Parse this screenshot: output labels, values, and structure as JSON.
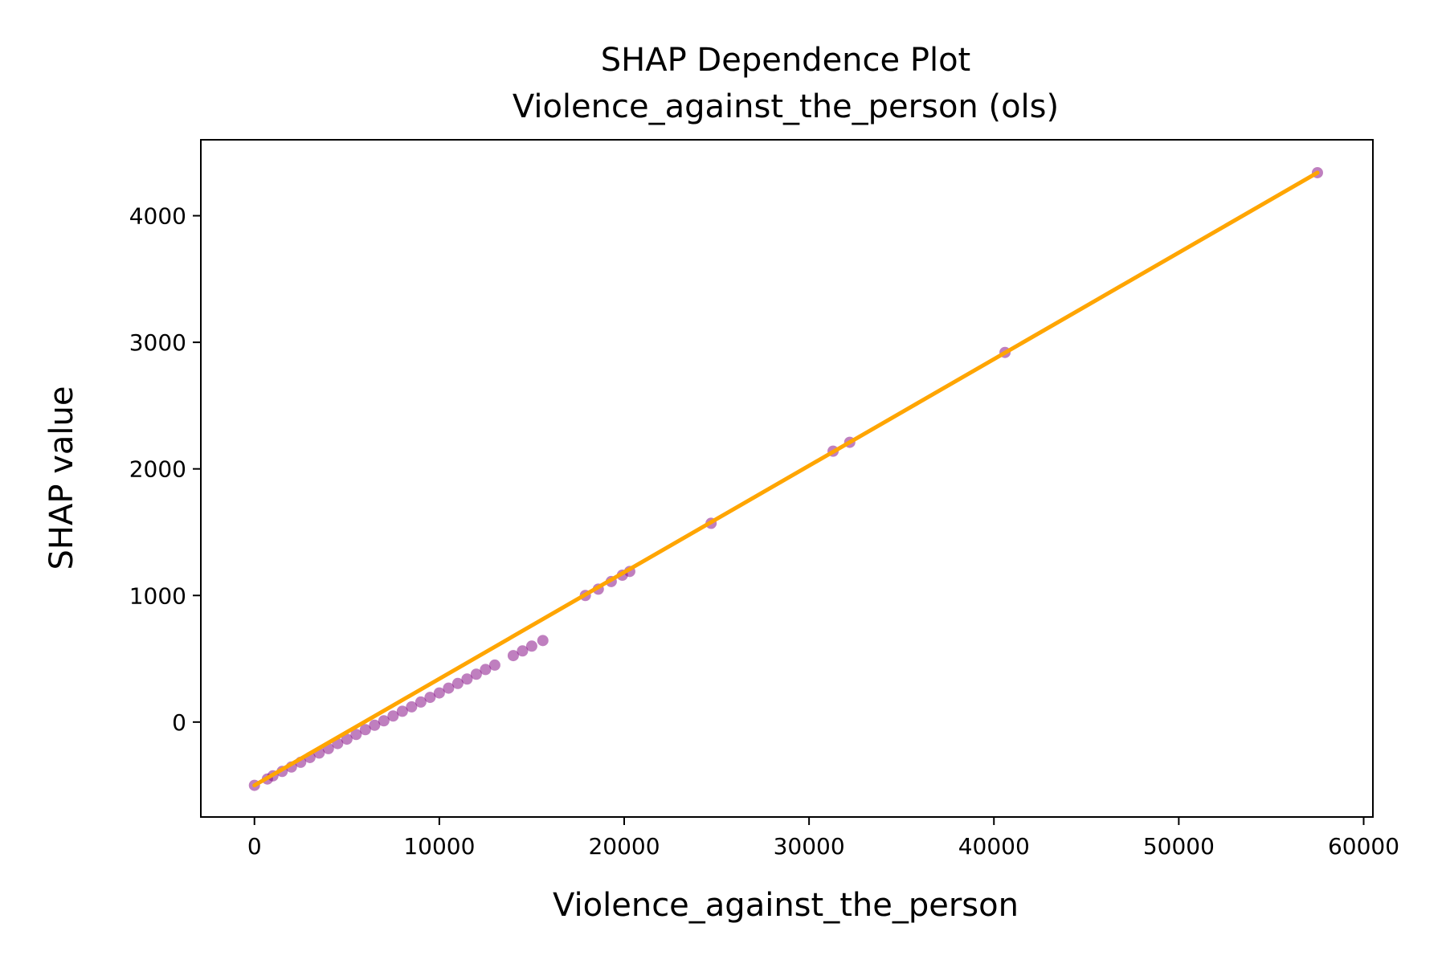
{
  "chart_data": {
    "type": "scatter",
    "title": "SHAP Dependence Plot",
    "subtitle": "Violence_against_the_person (ols)",
    "xlabel": "Violence_against_the_person",
    "ylabel": "SHAP value",
    "xlim": [
      -2900,
      60500
    ],
    "ylim": [
      -750,
      4600
    ],
    "xticks": [
      0,
      10000,
      20000,
      30000,
      40000,
      50000,
      60000
    ],
    "xtick_labels": [
      "0",
      "10000",
      "20000",
      "30000",
      "40000",
      "50000",
      "60000"
    ],
    "yticks": [
      0,
      1000,
      2000,
      3000,
      4000
    ],
    "ytick_labels": [
      "0",
      "1000",
      "2000",
      "3000",
      "4000"
    ],
    "grid": false,
    "colors": {
      "points": "#800080",
      "fit_line": "#FFA500",
      "axes": "#000000"
    },
    "series": [
      {
        "kind": "points",
        "x": [
          0,
          700,
          1000,
          1500,
          2000,
          2500,
          3000,
          3500,
          4000,
          4500,
          5000,
          5500,
          6000,
          6500,
          7000,
          7500,
          8000,
          8500,
          9000,
          9500,
          10000,
          10500,
          11000,
          11500,
          12000,
          12500,
          13000,
          14000,
          14500,
          15000,
          15600,
          17900,
          18600,
          19300,
          19900,
          20300,
          24700,
          31300,
          32200,
          40600,
          57500
        ],
        "y": [
          -500,
          -450,
          -425,
          -390,
          -355,
          -318,
          -280,
          -245,
          -210,
          -170,
          -135,
          -98,
          -60,
          -25,
          10,
          48,
          85,
          120,
          158,
          195,
          230,
          268,
          305,
          340,
          378,
          415,
          450,
          525,
          562,
          600,
          644,
          1000,
          1050,
          1110,
          1160,
          1190,
          1570,
          2140,
          2210,
          2920,
          4340
        ]
      },
      {
        "kind": "fit-line",
        "x": [
          0,
          57500
        ],
        "y": [
          -500,
          4340
        ]
      }
    ]
  }
}
